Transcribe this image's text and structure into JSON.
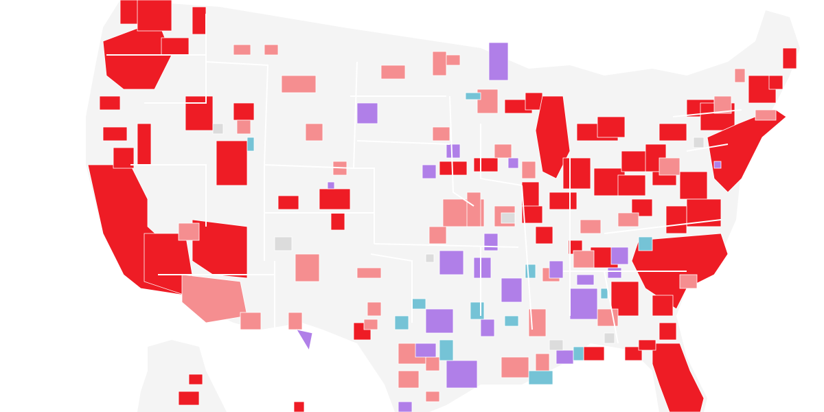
{
  "map": {
    "colors": {
      "background": "#ffffff",
      "land": "#f4f4f4",
      "border": "#ffffff",
      "red": "#ee1c25",
      "pink": "#f58e90",
      "purple": "#b07fe8",
      "teal": "#75c3d6",
      "gray": "#dcdcdc"
    }
  }
}
